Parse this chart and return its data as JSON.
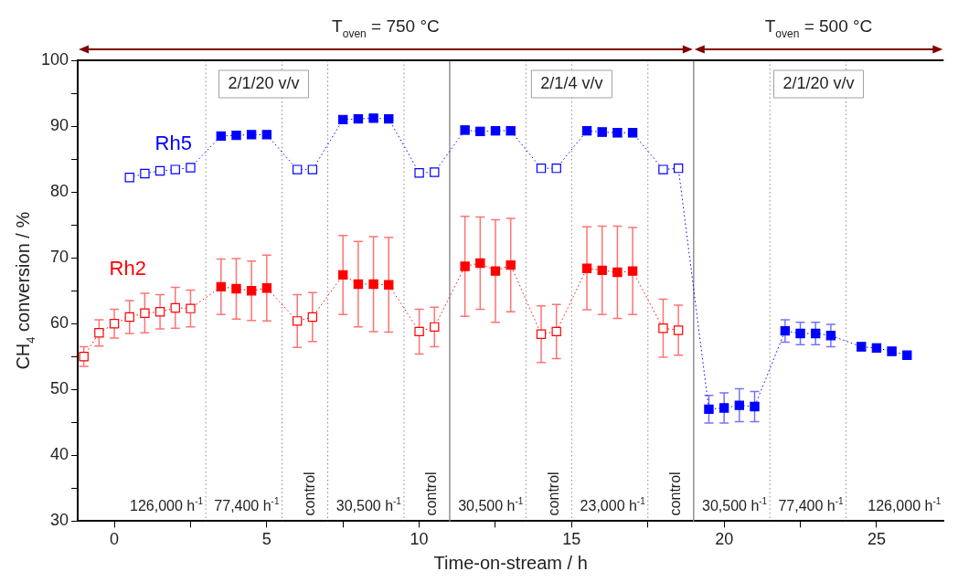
{
  "chart_data": {
    "type": "line",
    "xlabel": "Time-on-stream / h",
    "ylabel": "CH$_{4}$ conversion / %",
    "xlim": [
      -1.2,
      27.2
    ],
    "ylim": [
      30,
      100
    ],
    "xticks": [
      0,
      {
        "value": 2.5,
        "label": null
      },
      5,
      {
        "value": 7.5,
        "label": null
      },
      10,
      {
        "value": 12.5,
        "label": null
      },
      15,
      {
        "value": 17.5,
        "label": null
      },
      20,
      {
        "value": 22.5,
        "label": null
      },
      25
    ],
    "yticks": [
      30,
      {
        "value": 35,
        "label": null
      },
      40,
      {
        "value": 45,
        "label": null
      },
      50,
      {
        "value": 55,
        "label": null
      },
      60,
      {
        "value": 65,
        "label": null
      },
      70,
      {
        "value": 75,
        "label": null
      },
      80,
      {
        "value": 85,
        "label": null
      },
      90,
      {
        "value": 95,
        "label": null
      },
      100
    ],
    "grid": false,
    "legend": false,
    "marker": "square",
    "line_style": "dotted",
    "series": [
      {
        "name": "Rh5",
        "color": "#0000ff",
        "x": [
          0.5,
          1,
          1.5,
          2,
          2.5,
          3.5,
          4,
          4.5,
          5,
          6,
          6.5,
          7.5,
          8,
          8.5,
          9,
          10,
          10.5,
          11.5,
          12,
          12.5,
          13,
          14,
          14.5,
          15.5,
          16,
          16.5,
          17,
          18,
          18.5,
          19.5,
          20,
          20.5,
          21,
          22,
          22.5,
          23,
          23.5,
          24.5,
          25,
          25.5,
          26
        ],
        "values": [
          82.2,
          82.8,
          83.2,
          83.4,
          83.7,
          88.5,
          88.6,
          88.7,
          88.7,
          83.4,
          83.4,
          91.0,
          91.1,
          91.2,
          91.1,
          82.9,
          83.0,
          89.4,
          89.2,
          89.3,
          89.3,
          83.6,
          83.6,
          89.3,
          89.1,
          89.0,
          89.0,
          83.4,
          83.6,
          47.0,
          47.2,
          47.6,
          47.4,
          58.9,
          58.5,
          58.5,
          58.2,
          56.5,
          56.3,
          55.8,
          55.2
        ],
        "errors": [
          null,
          null,
          null,
          null,
          null,
          null,
          null,
          null,
          null,
          null,
          null,
          null,
          null,
          null,
          null,
          null,
          null,
          0.6,
          0.6,
          0.6,
          0.6,
          null,
          null,
          0.6,
          0.6,
          0.6,
          0.6,
          null,
          null,
          2.1,
          2.3,
          2.5,
          2.3,
          1.7,
          1.7,
          1.7,
          1.7,
          0.6,
          0.6,
          0.6,
          null
        ],
        "colors": [
          "#ffffff",
          "#ffffff",
          "#ffffff",
          "#ffffff",
          "#ffffff",
          "#0000ff",
          "#0000ff",
          "#0000ff",
          "#0000ff",
          "#ffffff",
          "#ffffff",
          "#0000ff",
          "#0000ff",
          "#0000ff",
          "#0000ff",
          "#ffffff",
          "#ffffff",
          "#0000ff",
          "#0000ff",
          "#0000ff",
          "#0000ff",
          "#ffffff",
          "#ffffff",
          "#0000ff",
          "#0000ff",
          "#0000ff",
          "#0000ff",
          "#ffffff",
          "#ffffff",
          "#0000ff",
          "#0000ff",
          "#0000ff",
          "#0000ff",
          "#0000ff",
          "#0000ff",
          "#0000ff",
          "#0000ff",
          "#0000ff",
          "#0000ff",
          "#0000ff",
          "#0000ff"
        ]
      },
      {
        "name": "Rh2",
        "color": "#ff0000",
        "x": [
          -1,
          -0.5,
          0,
          0.5,
          1,
          1.5,
          2,
          2.5,
          3.5,
          4,
          4.5,
          5,
          6,
          6.5,
          7.5,
          8,
          8.5,
          9,
          10,
          10.5,
          11.5,
          12,
          12.5,
          13,
          14,
          14.5,
          15.5,
          16,
          16.5,
          17,
          18,
          18.5
        ],
        "values": [
          55.0,
          58.6,
          60.0,
          61.0,
          61.6,
          61.8,
          62.4,
          62.3,
          65.6,
          65.3,
          65.0,
          65.4,
          60.4,
          61.0,
          67.4,
          66.0,
          66.0,
          65.9,
          58.8,
          59.5,
          68.7,
          69.2,
          68.0,
          68.9,
          58.4,
          58.8,
          68.4,
          68.1,
          67.8,
          68.0,
          59.3,
          59.0
        ],
        "errors": [
          1.5,
          2,
          2.2,
          2.5,
          3,
          2.6,
          3.1,
          2.8,
          4.2,
          4.6,
          4.5,
          5,
          4,
          3.7,
          6,
          6.5,
          7.2,
          7.2,
          3.4,
          3,
          7.6,
          7,
          7.8,
          7.1,
          4.3,
          4.1,
          6.3,
          6.7,
          7,
          6.6,
          4.4,
          3.8
        ],
        "colors": [
          "#ffffff",
          "#ffffff",
          "#ffffff",
          "#ffffff",
          "#ffffff",
          "#ffffff",
          "#ffffff",
          "#ffffff",
          "#ff0000",
          "#ff0000",
          "#ff0000",
          "#ff0000",
          "#ffffff",
          "#ffffff",
          "#ff0000",
          "#ff0000",
          "#ff0000",
          "#ff0000",
          "#ffffff",
          "#ffffff",
          "#ff0000",
          "#ff0000",
          "#ff0000",
          "#ff0000",
          "#ffffff",
          "#ffffff",
          "#ff0000",
          "#ff0000",
          "#ff0000",
          "#ff0000",
          "#ffffff",
          "#ffffff"
        ]
      }
    ],
    "ref_lines": [
      {
        "axis": "x",
        "value": 3,
        "line_style": "dotted"
      },
      {
        "axis": "x",
        "value": 5.5,
        "line_style": "dotted"
      },
      {
        "axis": "x",
        "value": 7,
        "line_style": "dotted"
      },
      {
        "axis": "x",
        "value": 9.5,
        "line_style": "dotted"
      },
      {
        "axis": "x",
        "value": 11,
        "line_style": "solid"
      },
      {
        "axis": "x",
        "value": 13.5,
        "line_style": "dotted"
      },
      {
        "axis": "x",
        "value": 15,
        "line_style": "dotted"
      },
      {
        "axis": "x",
        "value": 17.5,
        "line_style": "dotted"
      },
      {
        "axis": "x",
        "value": 19,
        "line_style": "solid"
      },
      {
        "axis": "x",
        "value": 21.5,
        "line_style": "dotted"
      },
      {
        "axis": "x",
        "value": 24,
        "line_style": "dotted"
      }
    ],
    "annotations": [
      "T$_{oven}$ = 750 °C",
      "T$_{oven}$ = 500 °C",
      "2/1/20 v/v",
      "2/1/4 v/v",
      "2/1/20 v/v",
      "126,000 h$^{-1}$",
      "77,400 h$^{-1}$",
      "control",
      "30,500 h$^{-1}$",
      "control",
      "30,500 h$^{-1}$",
      "control",
      "23,000 h$^{-1}$",
      "control",
      "30,500 h$^{-1}$",
      "77,400 h$^{-1}$",
      "126,000 h$^{-1}$"
    ]
  }
}
